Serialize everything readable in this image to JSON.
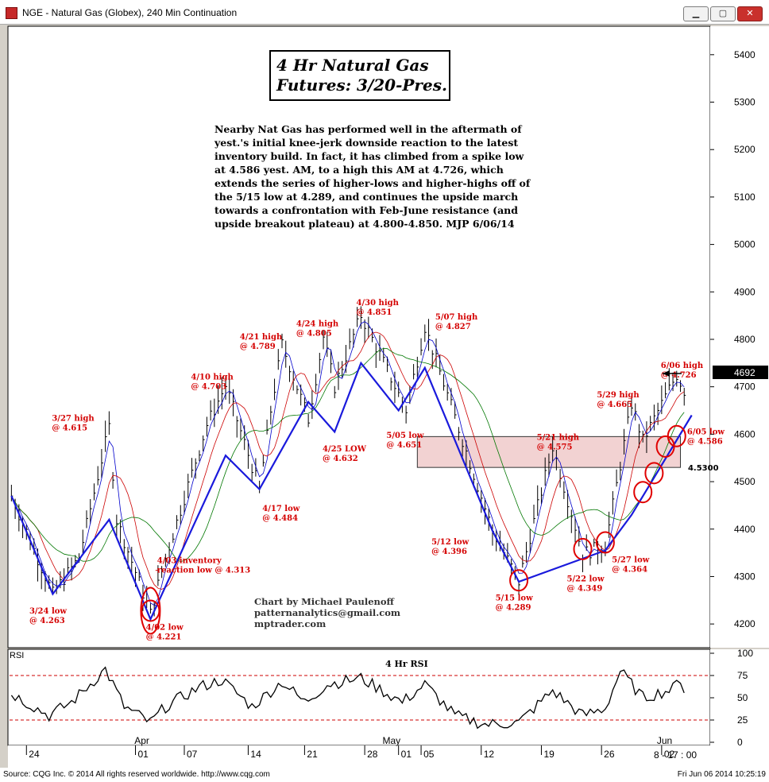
{
  "window": {
    "title": "NGE - Natural Gas (Globex), 240 Min Continuation",
    "min_glyph": "▁",
    "max_glyph": "▢",
    "close_glyph": "✕"
  },
  "footer": {
    "source": "Source: CQG Inc. © 2014 All rights reserved worldwide. http://www.cqg.com",
    "timestamp": "Fri Jun 06 2014 10:25:19"
  },
  "colors": {
    "price_bars": "#000000",
    "ma_fast": "#0000cc",
    "ma_mid": "#cc0000",
    "ma_slow": "#007700",
    "trendlines": "#1a1adc",
    "annotation": "#d40000",
    "resistance_zone": "#f2d2d2"
  },
  "chart_data": [
    {
      "type": "line",
      "title": "4 Hr Natural Gas Futures: 3/20-Pres.",
      "title_lines": [
        "4 Hr Natural Gas",
        "Futures:  3/20-Pres."
      ],
      "commentary": [
        "Nearby Nat Gas has performed well in the aftermath of",
        "yest.'s initial knee-jerk downside reaction to the latest",
        "inventory build. In fact, it has climbed from a spike low",
        "at 4.586 yest. AM, to a high this AM at 4.726, which",
        "extends the series of higher-lows and higher-highs off of",
        "the 5/15 low at 4.289, and continues the upside march",
        "towards a confrontation with Feb-June resistance (and",
        "upside breakout plateau) at 4.800-4.850.  MJP  6/06/14"
      ],
      "credits": [
        "Chart by Michael Paulenoff",
        "patternanalytics@gmail.com",
        "mptrader.com"
      ],
      "ylim": [
        4150,
        5460
      ],
      "yticks": [
        4200,
        4300,
        4400,
        4500,
        4600,
        4700,
        4800,
        4900,
        5000,
        5100,
        5200,
        5300,
        5400
      ],
      "ytick_labels": [
        "4200",
        "4300",
        "4400",
        "4500",
        "4600",
        "4700",
        "4800",
        "4900",
        "5000",
        "5100",
        "5200",
        "5300",
        "5400"
      ],
      "last_price": "4692",
      "last_price_value": 4692,
      "bar_count": 120,
      "pivots": [
        {
          "bar": 0,
          "value": 4470
        },
        {
          "bar": 11,
          "value": 4263
        },
        {
          "bar": 18,
          "value": 4340
        },
        {
          "bar": 26,
          "value": 4615
        },
        {
          "bar": 28,
          "value": 4420
        },
        {
          "bar": 37,
          "value": 4221
        },
        {
          "bar": 40,
          "value": 4313
        },
        {
          "bar": 52,
          "value": 4620
        },
        {
          "bar": 57,
          "value": 4703
        },
        {
          "bar": 66,
          "value": 4484
        },
        {
          "bar": 69,
          "value": 4650
        },
        {
          "bar": 72,
          "value": 4789
        },
        {
          "bar": 79,
          "value": 4632
        },
        {
          "bar": 83,
          "value": 4805
        },
        {
          "bar": 86,
          "value": 4700
        },
        {
          "bar": 93,
          "value": 4851
        },
        {
          "bar": 105,
          "value": 4651
        },
        {
          "bar": 110,
          "value": 4827
        },
        {
          "bar": 128,
          "value": 4396
        },
        {
          "bar": 135,
          "value": 4289
        },
        {
          "bar": 144,
          "value": 4575
        },
        {
          "bar": 152,
          "value": 4349
        },
        {
          "bar": 158,
          "value": 4364
        },
        {
          "bar": 165,
          "value": 4665
        },
        {
          "bar": 168,
          "value": 4586
        },
        {
          "bar": 177,
          "value": 4726
        },
        {
          "bar": 179,
          "value": 4692
        }
      ],
      "resistance_zone": {
        "low": 4530,
        "high": 4595
      },
      "zone_label": "4.5300",
      "trendline_points": [
        {
          "bar": 0,
          "value": 4470
        },
        {
          "bar": 11,
          "value": 4263
        },
        {
          "bar": 26,
          "value": 4420
        },
        {
          "bar": 37,
          "value": 4210
        },
        {
          "bar": 57,
          "value": 4555
        },
        {
          "bar": 66,
          "value": 4484
        },
        {
          "bar": 79,
          "value": 4668
        },
        {
          "bar": 86,
          "value": 4605
        },
        {
          "bar": 93,
          "value": 4750
        },
        {
          "bar": 103,
          "value": 4650
        },
        {
          "bar": 110,
          "value": 4740
        },
        {
          "bar": 128,
          "value": 4396
        },
        {
          "bar": 135,
          "value": 4289
        },
        {
          "bar": 158,
          "value": 4355
        },
        {
          "bar": 165,
          "value": 4430
        },
        {
          "bar": 181,
          "value": 4640
        }
      ],
      "annotations": [
        {
          "lines": [
            "3/27 high",
            "@ 4.615"
          ],
          "bar": 15,
          "value": 4628
        },
        {
          "lines": [
            "3/24 low",
            "@ 4.263"
          ],
          "bar": 9,
          "value": 4222
        },
        {
          "lines": [
            "4/02 low",
            "@ 4.221"
          ],
          "bar": 40,
          "value": 4188
        },
        {
          "lines": [
            "4/03 inventory",
            "reaction low @ 4.313"
          ],
          "bar": 43,
          "value": 4328
        },
        {
          "lines": [
            "4/10 high",
            "@ 4.703"
          ],
          "bar": 52,
          "value": 4715
        },
        {
          "lines": [
            "4/17 low",
            "@ 4.484"
          ],
          "bar": 71,
          "value": 4438
        },
        {
          "lines": [
            "4/21 high",
            "@ 4.789"
          ],
          "bar": 65,
          "value": 4800
        },
        {
          "lines": [
            "4/24 high",
            "@ 4.805"
          ],
          "bar": 80,
          "value": 4828
        },
        {
          "lines": [
            "4/25 LOW",
            "@ 4.632"
          ],
          "bar": 87,
          "value": 4564
        },
        {
          "lines": [
            "4/30 high",
            "@ 4.851"
          ],
          "bar": 96,
          "value": 4872
        },
        {
          "lines": [
            "5/05 low",
            "@ 4.651"
          ],
          "bar": 104,
          "value": 4592
        },
        {
          "lines": [
            "5/07 high",
            "@ 4.827"
          ],
          "bar": 117,
          "value": 4842
        },
        {
          "lines": [
            "5/12 low",
            "@ 4.396"
          ],
          "bar": 116,
          "value": 4368
        },
        {
          "lines": [
            "5/15 low",
            "@ 4.289"
          ],
          "bar": 133,
          "value": 4250
        },
        {
          "lines": [
            "5/21 high",
            "@ 4.575"
          ],
          "bar": 144,
          "value": 4588
        },
        {
          "lines": [
            "5/22 low",
            "@ 4.349"
          ],
          "bar": 152,
          "value": 4290
        },
        {
          "lines": [
            "5/27 low",
            "@ 4.364"
          ],
          "bar": 164,
          "value": 4330
        },
        {
          "lines": [
            "5/29 high",
            "@ 4.665"
          ],
          "bar": 160,
          "value": 4678
        },
        {
          "lines": [
            "6/05 low",
            "@ 4.586"
          ],
          "bar": 184,
          "value": 4600
        },
        {
          "lines": [
            "6/06 high",
            "@ 4.726"
          ],
          "bar": 177,
          "value": 4740
        }
      ],
      "circles": [
        {
          "bar": 37,
          "value": 4228
        },
        {
          "bar": 135,
          "value": 4292
        },
        {
          "bar": 152,
          "value": 4358
        },
        {
          "bar": 158,
          "value": 4372
        },
        {
          "bar": 168,
          "value": 4478
        },
        {
          "bar": 171,
          "value": 4518
        },
        {
          "bar": 174,
          "value": 4574
        },
        {
          "bar": 177,
          "value": 4596
        }
      ]
    },
    {
      "type": "line",
      "title": "4 Hr RSI",
      "panel_label": "RSI",
      "ylim": [
        0,
        100
      ],
      "yticks": [
        0,
        25,
        50,
        75,
        100
      ],
      "ytick_labels": [
        "0",
        "25",
        "50",
        "75",
        "100"
      ],
      "bands": [
        25,
        75
      ],
      "pivots": [
        {
          "bar": 0,
          "value": 55
        },
        {
          "bar": 10,
          "value": 30
        },
        {
          "bar": 16,
          "value": 45
        },
        {
          "bar": 25,
          "value": 82
        },
        {
          "bar": 30,
          "value": 40
        },
        {
          "bar": 37,
          "value": 22
        },
        {
          "bar": 41,
          "value": 40
        },
        {
          "bar": 50,
          "value": 62
        },
        {
          "bar": 56,
          "value": 70
        },
        {
          "bar": 64,
          "value": 40
        },
        {
          "bar": 72,
          "value": 68
        },
        {
          "bar": 78,
          "value": 45
        },
        {
          "bar": 84,
          "value": 65
        },
        {
          "bar": 93,
          "value": 72
        },
        {
          "bar": 104,
          "value": 45
        },
        {
          "bar": 110,
          "value": 65
        },
        {
          "bar": 118,
          "value": 30
        },
        {
          "bar": 126,
          "value": 20
        },
        {
          "bar": 135,
          "value": 22
        },
        {
          "bar": 144,
          "value": 58
        },
        {
          "bar": 152,
          "value": 30
        },
        {
          "bar": 158,
          "value": 38
        },
        {
          "bar": 162,
          "value": 80
        },
        {
          "bar": 168,
          "value": 50
        },
        {
          "bar": 176,
          "value": 60
        },
        {
          "bar": 178,
          "value": 72
        },
        {
          "bar": 179,
          "value": 58
        }
      ]
    }
  ],
  "x_axis": {
    "day_labels": [
      {
        "label": "24",
        "bar": 4
      },
      {
        "label": "01",
        "bar": 33
      },
      {
        "label": "07",
        "bar": 46
      },
      {
        "label": "14",
        "bar": 63
      },
      {
        "label": "21",
        "bar": 78
      },
      {
        "label": "28",
        "bar": 94
      },
      {
        "label": "01",
        "bar": 103
      },
      {
        "label": "05",
        "bar": 109
      },
      {
        "label": "12",
        "bar": 125
      },
      {
        "label": "19",
        "bar": 141
      },
      {
        "label": "26",
        "bar": 157
      },
      {
        "label": "02",
        "bar": 173
      }
    ],
    "month_labels": [
      {
        "label": "Apr",
        "bar": 34
      },
      {
        "label": "May",
        "bar": 100
      },
      {
        "label": "Jun",
        "bar": 173
      }
    ],
    "session_label": "8 - 17 : 00"
  }
}
